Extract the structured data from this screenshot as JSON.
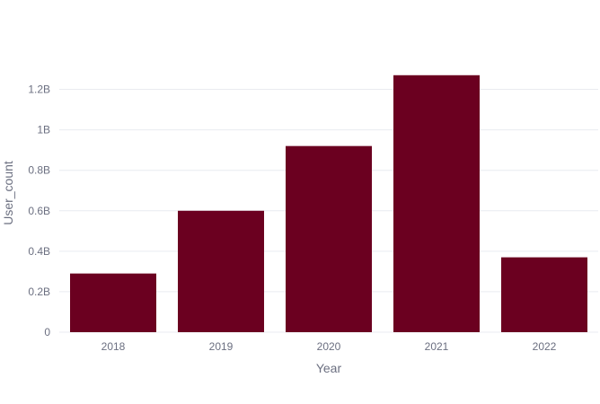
{
  "colors": {
    "bar": "#6b0020",
    "grid": "#e9ebf0",
    "text": "#6b6f80",
    "background": "#ffffff"
  },
  "chart_data": {
    "type": "bar",
    "title": "",
    "xlabel": "Year",
    "ylabel": "User_count",
    "categories": [
      "2018",
      "2019",
      "2020",
      "2021",
      "2022"
    ],
    "values": [
      290000000,
      600000000,
      920000000,
      1270000000,
      370000000
    ],
    "ylim": [
      0,
      1340000000
    ],
    "yticks": [
      0,
      200000000,
      400000000,
      600000000,
      800000000,
      1000000000,
      1200000000
    ],
    "ytick_labels": [
      "0",
      "0.2B",
      "0.4B",
      "0.6B",
      "0.8B",
      "1B",
      "1.2B"
    ],
    "grid": true,
    "legend": "none"
  }
}
